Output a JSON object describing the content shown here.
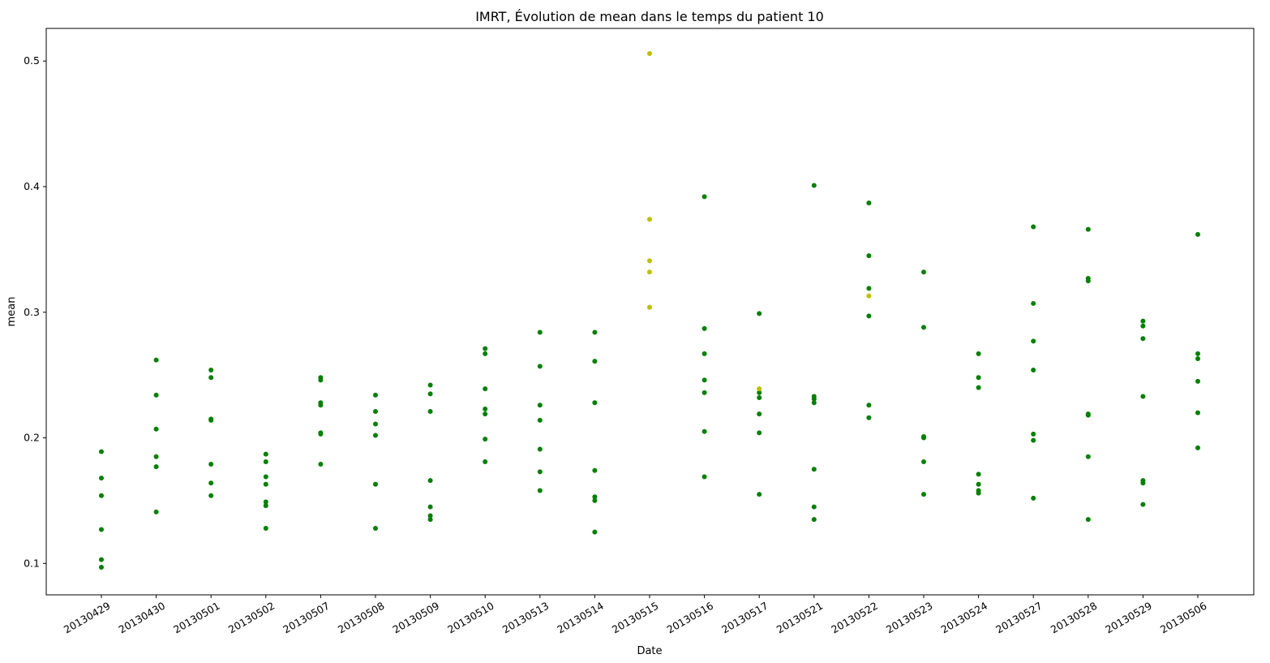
{
  "chart_data": {
    "type": "scatter",
    "title": "IMRT, Évolution de mean dans le temps du patient 10",
    "xlabel": "Date",
    "ylabel": "mean",
    "ylim": [
      0.075,
      0.526
    ],
    "yticks": [
      0.1,
      0.2,
      0.3,
      0.4,
      0.5
    ],
    "ytick_labels": [
      "0.1",
      "0.2",
      "0.3",
      "0.4",
      "0.5"
    ],
    "categories": [
      "20130429",
      "20130430",
      "20130501",
      "20130502",
      "20130507",
      "20130508",
      "20130509",
      "20130510",
      "20130513",
      "20130514",
      "20130515",
      "20130516",
      "20130517",
      "20130521",
      "20130522",
      "20130523",
      "20130524",
      "20130527",
      "20130528",
      "20130529",
      "20130506"
    ],
    "grid": false,
    "series": [
      {
        "color": "#008000",
        "points": [
          {
            "x": "20130429",
            "y": 0.189
          },
          {
            "x": "20130429",
            "y": 0.168
          },
          {
            "x": "20130429",
            "y": 0.154
          },
          {
            "x": "20130429",
            "y": 0.127
          },
          {
            "x": "20130429",
            "y": 0.103
          },
          {
            "x": "20130429",
            "y": 0.097
          },
          {
            "x": "20130430",
            "y": 0.262
          },
          {
            "x": "20130430",
            "y": 0.234
          },
          {
            "x": "20130430",
            "y": 0.207
          },
          {
            "x": "20130430",
            "y": 0.185
          },
          {
            "x": "20130430",
            "y": 0.177
          },
          {
            "x": "20130430",
            "y": 0.141
          },
          {
            "x": "20130501",
            "y": 0.254
          },
          {
            "x": "20130501",
            "y": 0.248
          },
          {
            "x": "20130501",
            "y": 0.215
          },
          {
            "x": "20130501",
            "y": 0.214
          },
          {
            "x": "20130501",
            "y": 0.179
          },
          {
            "x": "20130501",
            "y": 0.164
          },
          {
            "x": "20130501",
            "y": 0.154
          },
          {
            "x": "20130502",
            "y": 0.187
          },
          {
            "x": "20130502",
            "y": 0.181
          },
          {
            "x": "20130502",
            "y": 0.169
          },
          {
            "x": "20130502",
            "y": 0.163
          },
          {
            "x": "20130502",
            "y": 0.149
          },
          {
            "x": "20130502",
            "y": 0.146
          },
          {
            "x": "20130502",
            "y": 0.128
          },
          {
            "x": "20130507",
            "y": 0.248
          },
          {
            "x": "20130507",
            "y": 0.246
          },
          {
            "x": "20130507",
            "y": 0.228
          },
          {
            "x": "20130507",
            "y": 0.226
          },
          {
            "x": "20130507",
            "y": 0.204
          },
          {
            "x": "20130507",
            "y": 0.203
          },
          {
            "x": "20130507",
            "y": 0.179
          },
          {
            "x": "20130508",
            "y": 0.234
          },
          {
            "x": "20130508",
            "y": 0.221
          },
          {
            "x": "20130508",
            "y": 0.211
          },
          {
            "x": "20130508",
            "y": 0.202
          },
          {
            "x": "20130508",
            "y": 0.163
          },
          {
            "x": "20130508",
            "y": 0.128
          },
          {
            "x": "20130509",
            "y": 0.242
          },
          {
            "x": "20130509",
            "y": 0.235
          },
          {
            "x": "20130509",
            "y": 0.221
          },
          {
            "x": "20130509",
            "y": 0.166
          },
          {
            "x": "20130509",
            "y": 0.145
          },
          {
            "x": "20130509",
            "y": 0.138
          },
          {
            "x": "20130509",
            "y": 0.135
          },
          {
            "x": "20130510",
            "y": 0.271
          },
          {
            "x": "20130510",
            "y": 0.267
          },
          {
            "x": "20130510",
            "y": 0.239
          },
          {
            "x": "20130510",
            "y": 0.223
          },
          {
            "x": "20130510",
            "y": 0.219
          },
          {
            "x": "20130510",
            "y": 0.199
          },
          {
            "x": "20130510",
            "y": 0.181
          },
          {
            "x": "20130513",
            "y": 0.284
          },
          {
            "x": "20130513",
            "y": 0.257
          },
          {
            "x": "20130513",
            "y": 0.226
          },
          {
            "x": "20130513",
            "y": 0.214
          },
          {
            "x": "20130513",
            "y": 0.191
          },
          {
            "x": "20130513",
            "y": 0.173
          },
          {
            "x": "20130513",
            "y": 0.158
          },
          {
            "x": "20130514",
            "y": 0.284
          },
          {
            "x": "20130514",
            "y": 0.261
          },
          {
            "x": "20130514",
            "y": 0.228
          },
          {
            "x": "20130514",
            "y": 0.174
          },
          {
            "x": "20130514",
            "y": 0.153
          },
          {
            "x": "20130514",
            "y": 0.15
          },
          {
            "x": "20130514",
            "y": 0.125
          },
          {
            "x": "20130516",
            "y": 0.392
          },
          {
            "x": "20130516",
            "y": 0.287
          },
          {
            "x": "20130516",
            "y": 0.267
          },
          {
            "x": "20130516",
            "y": 0.246
          },
          {
            "x": "20130516",
            "y": 0.236
          },
          {
            "x": "20130516",
            "y": 0.205
          },
          {
            "x": "20130516",
            "y": 0.169
          },
          {
            "x": "20130517",
            "y": 0.299
          },
          {
            "x": "20130517",
            "y": 0.236
          },
          {
            "x": "20130517",
            "y": 0.232
          },
          {
            "x": "20130517",
            "y": 0.219
          },
          {
            "x": "20130517",
            "y": 0.204
          },
          {
            "x": "20130517",
            "y": 0.155
          },
          {
            "x": "20130521",
            "y": 0.401
          },
          {
            "x": "20130521",
            "y": 0.233
          },
          {
            "x": "20130521",
            "y": 0.231
          },
          {
            "x": "20130521",
            "y": 0.228
          },
          {
            "x": "20130521",
            "y": 0.175
          },
          {
            "x": "20130521",
            "y": 0.145
          },
          {
            "x": "20130521",
            "y": 0.135
          },
          {
            "x": "20130522",
            "y": 0.387
          },
          {
            "x": "20130522",
            "y": 0.345
          },
          {
            "x": "20130522",
            "y": 0.319
          },
          {
            "x": "20130522",
            "y": 0.297
          },
          {
            "x": "20130522",
            "y": 0.226
          },
          {
            "x": "20130522",
            "y": 0.216
          },
          {
            "x": "20130523",
            "y": 0.332
          },
          {
            "x": "20130523",
            "y": 0.288
          },
          {
            "x": "20130523",
            "y": 0.201
          },
          {
            "x": "20130523",
            "y": 0.2
          },
          {
            "x": "20130523",
            "y": 0.181
          },
          {
            "x": "20130523",
            "y": 0.155
          },
          {
            "x": "20130524",
            "y": 0.267
          },
          {
            "x": "20130524",
            "y": 0.248
          },
          {
            "x": "20130524",
            "y": 0.24
          },
          {
            "x": "20130524",
            "y": 0.171
          },
          {
            "x": "20130524",
            "y": 0.163
          },
          {
            "x": "20130524",
            "y": 0.158
          },
          {
            "x": "20130524",
            "y": 0.156
          },
          {
            "x": "20130527",
            "y": 0.368
          },
          {
            "x": "20130527",
            "y": 0.307
          },
          {
            "x": "20130527",
            "y": 0.277
          },
          {
            "x": "20130527",
            "y": 0.254
          },
          {
            "x": "20130527",
            "y": 0.203
          },
          {
            "x": "20130527",
            "y": 0.198
          },
          {
            "x": "20130527",
            "y": 0.152
          },
          {
            "x": "20130528",
            "y": 0.366
          },
          {
            "x": "20130528",
            "y": 0.327
          },
          {
            "x": "20130528",
            "y": 0.325
          },
          {
            "x": "20130528",
            "y": 0.219
          },
          {
            "x": "20130528",
            "y": 0.218
          },
          {
            "x": "20130528",
            "y": 0.185
          },
          {
            "x": "20130528",
            "y": 0.135
          },
          {
            "x": "20130529",
            "y": 0.293
          },
          {
            "x": "20130529",
            "y": 0.289
          },
          {
            "x": "20130529",
            "y": 0.279
          },
          {
            "x": "20130529",
            "y": 0.233
          },
          {
            "x": "20130529",
            "y": 0.166
          },
          {
            "x": "20130529",
            "y": 0.164
          },
          {
            "x": "20130529",
            "y": 0.147
          },
          {
            "x": "20130506",
            "y": 0.362
          },
          {
            "x": "20130506",
            "y": 0.267
          },
          {
            "x": "20130506",
            "y": 0.263
          },
          {
            "x": "20130506",
            "y": 0.245
          },
          {
            "x": "20130506",
            "y": 0.22
          },
          {
            "x": "20130506",
            "y": 0.192
          }
        ]
      },
      {
        "color": "#bfbf00",
        "points": [
          {
            "x": "20130515",
            "y": 0.506
          },
          {
            "x": "20130515",
            "y": 0.374
          },
          {
            "x": "20130515",
            "y": 0.341
          },
          {
            "x": "20130515",
            "y": 0.332
          },
          {
            "x": "20130515",
            "y": 0.304
          },
          {
            "x": "20130517",
            "y": 0.239
          },
          {
            "x": "20130522",
            "y": 0.313
          }
        ]
      }
    ]
  }
}
